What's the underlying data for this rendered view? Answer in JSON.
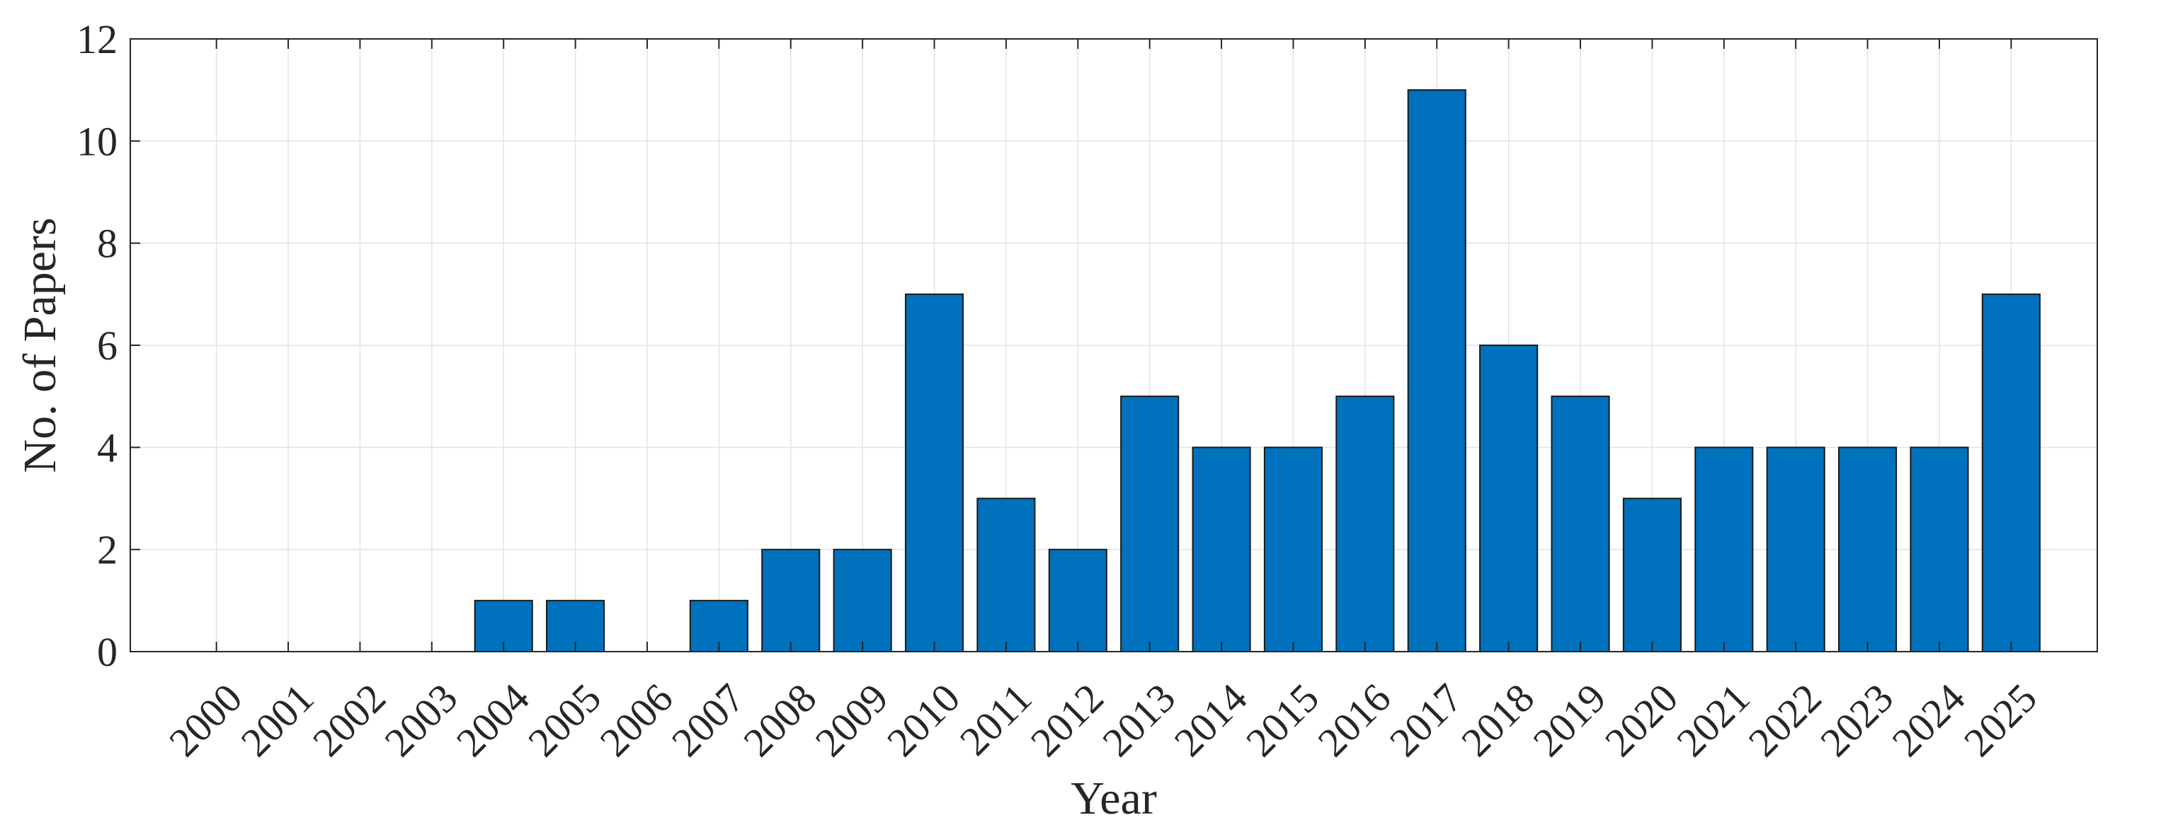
{
  "chart_data": {
    "type": "bar",
    "title": "",
    "xlabel": "Year",
    "ylabel": "No. of Papers",
    "categories": [
      "2000",
      "2001",
      "2002",
      "2003",
      "2004",
      "2005",
      "2006",
      "2007",
      "2008",
      "2009",
      "2010",
      "2011",
      "2012",
      "2013",
      "2014",
      "2015",
      "2016",
      "2017",
      "2018",
      "2019",
      "2020",
      "2021",
      "2022",
      "2023",
      "2024",
      "2025"
    ],
    "values": [
      0,
      0,
      0,
      0,
      1,
      1,
      0,
      1,
      2,
      2,
      7,
      3,
      2,
      5,
      4,
      4,
      5,
      11,
      6,
      5,
      3,
      4,
      4,
      4,
      4,
      7
    ],
    "ylim": [
      0,
      12
    ],
    "yticks": [
      0,
      2,
      4,
      6,
      8,
      10,
      12
    ],
    "grid": true,
    "legend": "none",
    "bar_color": "#0072BD",
    "bar_edge_color": "#1a1a1a"
  }
}
